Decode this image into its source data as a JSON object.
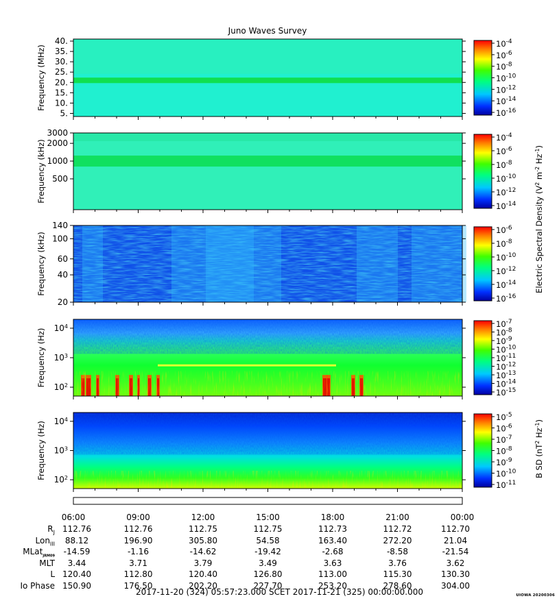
{
  "chart_data": [
    {
      "type": "heatmap",
      "title": "Juno Waves Survey",
      "ylabel": "Frequency (MHz)",
      "yticks": [
        "40.",
        "35.",
        "30.",
        "25.",
        "20.",
        "15.",
        "10.",
        "5."
      ],
      "ytick_values": [
        40,
        35,
        30,
        25,
        20,
        15,
        10,
        5
      ],
      "ylim": [
        3.5,
        41
      ],
      "yscale": "linear",
      "colorbar": {
        "ticks": [
          "10-4",
          "10-6",
          "10-8",
          "10-10",
          "10-12",
          "10-14",
          "10-16"
        ],
        "base": "10",
        "exponents": [
          "-4",
          "-6",
          "-8",
          "-10",
          "-12",
          "-14",
          "-16"
        ]
      }
    },
    {
      "type": "heatmap",
      "ylabel": "Frequency (kHz)",
      "yticks": [
        "3000",
        "2000",
        "1000",
        "500"
      ],
      "ytick_values": [
        3000,
        2000,
        1000,
        500
      ],
      "ylim": [
        150,
        3000
      ],
      "yscale": "log",
      "colorbar": {
        "base": "10",
        "exponents": [
          "-4",
          "-6",
          "-8",
          "-10",
          "-12",
          "-14"
        ]
      }
    },
    {
      "type": "heatmap",
      "ylabel": "Frequency (kHz)",
      "yticks": [
        "140",
        "100",
        "60",
        "40",
        "20"
      ],
      "ytick_values": [
        140,
        100,
        60,
        40,
        20
      ],
      "ylim": [
        20,
        140
      ],
      "yscale": "log",
      "colorbar": {
        "base": "10",
        "exponents": [
          "-6",
          "-8",
          "-10",
          "-12",
          "-14",
          "-16"
        ]
      }
    },
    {
      "type": "heatmap",
      "ylabel": "Frequency (Hz)",
      "yticks": [
        "10^4",
        "10^3",
        "10^2"
      ],
      "ytick_values": [
        10000,
        1000,
        100
      ],
      "ylim": [
        50,
        20000
      ],
      "yscale": "log",
      "colorbar": {
        "base": "10",
        "exponents": [
          "-7",
          "-8",
          "-9",
          "-10",
          "-11",
          "-12",
          "-13",
          "-14",
          "-15"
        ]
      }
    },
    {
      "type": "heatmap",
      "ylabel": "Frequency (Hz)",
      "yticks": [
        "10^4",
        "10^3",
        "10^2"
      ],
      "ytick_values": [
        10000,
        1000,
        100
      ],
      "ylim": [
        50,
        20000
      ],
      "yscale": "log",
      "colorbar": {
        "base": "10",
        "exponents": [
          "-5",
          "-6",
          "-7",
          "-8",
          "-9",
          "-10",
          "-11"
        ]
      }
    }
  ],
  "colorbar_labels": {
    "electric_prefix": "Electric Spectral Density (V",
    "electric_mid": " m",
    "electric_mid2": " Hz",
    "electric_suffix": ")",
    "bsd_prefix": "B SD (nT",
    "bsd_mid": " Hz",
    "bsd_suffix": ")",
    "sup_2": "2",
    "sup_m2": "-2",
    "sup_m1": "-1"
  },
  "ephemeris": {
    "times": [
      "06:00",
      "09:00",
      "12:00",
      "15:00",
      "18:00",
      "21:00",
      "00:00"
    ],
    "rows": [
      {
        "label": "R",
        "sub": "J",
        "values": [
          "112.76",
          "112.76",
          "112.75",
          "112.75",
          "112.73",
          "112.72",
          "112.70"
        ]
      },
      {
        "label": "Lon",
        "sub": "III",
        "values": [
          "88.12",
          "196.90",
          "305.80",
          "54.58",
          "163.40",
          "272.20",
          "21.04"
        ]
      },
      {
        "label": "MLat",
        "sub": "JRM09",
        "values": [
          "-14.59",
          "-1.16",
          "-14.62",
          "-19.42",
          "-2.68",
          "-8.58",
          "-21.54"
        ]
      },
      {
        "label": "MLT",
        "sub": "",
        "values": [
          "3.44",
          "3.71",
          "3.79",
          "3.49",
          "3.63",
          "3.76",
          "3.62"
        ]
      },
      {
        "label": "L",
        "sub": "",
        "values": [
          "120.40",
          "112.80",
          "120.40",
          "126.80",
          "113.00",
          "115.30",
          "130.30"
        ]
      },
      {
        "label": "Io Phase",
        "sub": "",
        "values": [
          "150.90",
          "176.50",
          "202.20",
          "227.70",
          "253.20",
          "278.60",
          "304.00"
        ]
      }
    ]
  },
  "scet_line": "2017-11-20 (324) 05:57:23.000    SCET    2017-11-21 (325) 00:00:00.000",
  "credit": "UIOWA 20200306"
}
